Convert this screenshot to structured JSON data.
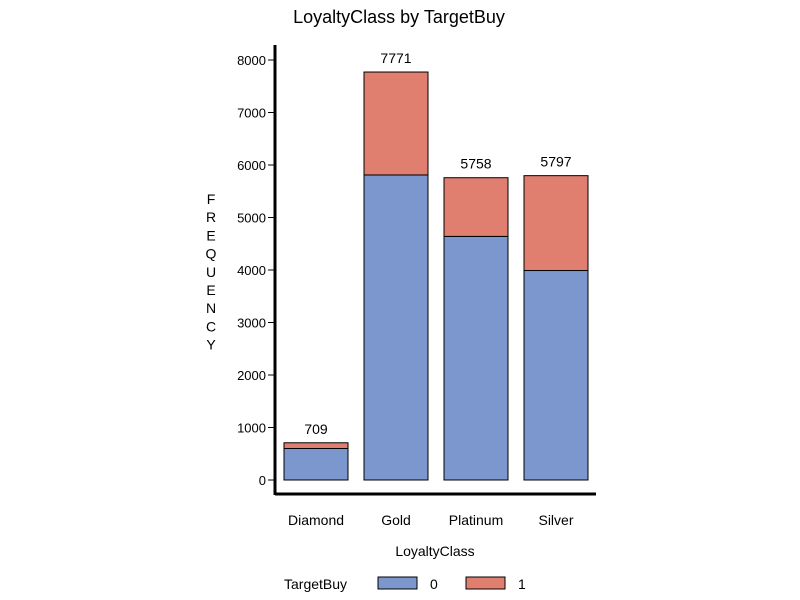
{
  "chart_data": {
    "type": "bar",
    "stacked": true,
    "title": "LoyaltyClass by TargetBuy",
    "xlabel": "LoyaltyClass",
    "ylabel": "FREQUENCY",
    "categories": [
      "Diamond",
      "Gold",
      "Platinum",
      "Silver"
    ],
    "series": [
      {
        "name": "0",
        "color": "#7b97cd",
        "values": [
          600,
          5810,
          4640,
          3990
        ]
      },
      {
        "name": "1",
        "color": "#e07f70",
        "values": [
          109,
          1961,
          1118,
          1807
        ]
      }
    ],
    "totals": [
      709,
      7771,
      5758,
      5797
    ],
    "ylim": [
      0,
      8000
    ],
    "yticks": [
      0,
      1000,
      2000,
      3000,
      4000,
      5000,
      6000,
      7000,
      8000
    ],
    "grid": false,
    "legend": {
      "title": "TargetBuy",
      "position": "bottom"
    }
  }
}
